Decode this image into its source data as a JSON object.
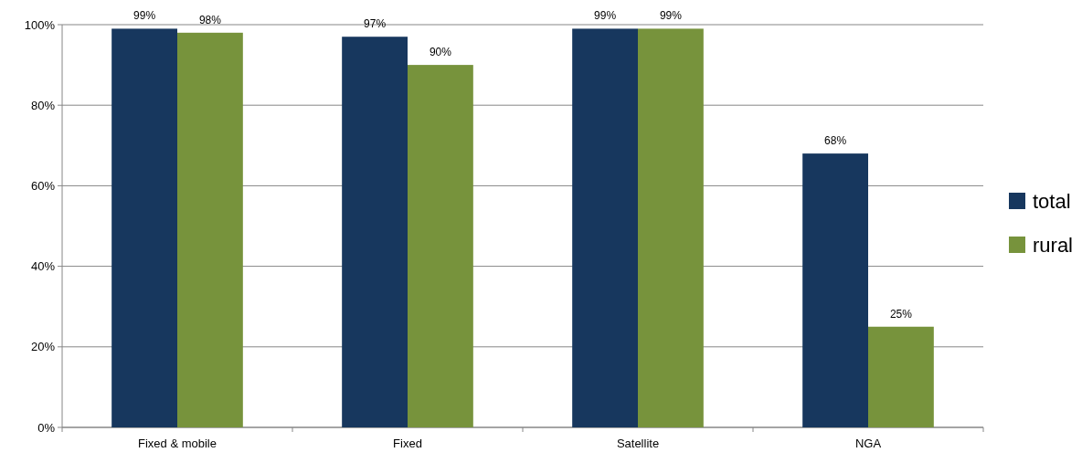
{
  "chart_data": {
    "type": "bar",
    "categories": [
      "Fixed & mobile",
      "Fixed",
      "Satellite",
      "NGA"
    ],
    "series": [
      {
        "name": "total",
        "color": "#17375e",
        "values": [
          99,
          97,
          99,
          68
        ],
        "value_labels": [
          "99%",
          "97%",
          "99%",
          "68%"
        ]
      },
      {
        "name": "rural",
        "color": "#77933c",
        "values": [
          98,
          90,
          99,
          25
        ],
        "value_labels": [
          "98%",
          "90%",
          "99%",
          "25%"
        ]
      }
    ],
    "ylim": [
      0,
      100
    ],
    "yticks": [
      {
        "value": 0,
        "label": "0%"
      },
      {
        "value": 20,
        "label": "20%"
      },
      {
        "value": 40,
        "label": "40%"
      },
      {
        "value": 60,
        "label": "60%"
      },
      {
        "value": 80,
        "label": "80%"
      },
      {
        "value": 100,
        "label": "100%"
      }
    ],
    "grid": "y",
    "legend": "right"
  }
}
